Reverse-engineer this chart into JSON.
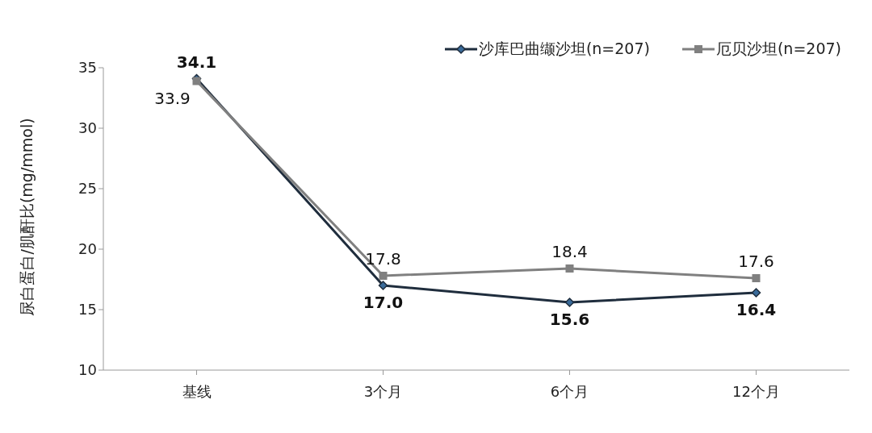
{
  "chart_data": {
    "type": "line",
    "ylabel": "尿白蛋白/肌酐比(mg/mmol)",
    "categories": [
      "基线",
      "3个月",
      "6个月",
      "12个月"
    ],
    "series": [
      {
        "name": "沙库巴曲缬沙坦(n=207)",
        "color": "#1f2d3d",
        "marker": "diamond",
        "values": [
          34.1,
          17.0,
          15.6,
          16.4
        ],
        "value_labels": [
          "34.1",
          "17.0",
          "15.6",
          "16.4"
        ]
      },
      {
        "name": "厄贝沙坦(n=207)",
        "color": "#808080",
        "marker": "square",
        "values": [
          33.9,
          17.8,
          18.4,
          17.6
        ],
        "value_labels": [
          "33.9",
          "17.8",
          "18.4",
          "17.6"
        ]
      }
    ],
    "ylim": [
      10,
      35
    ],
    "yticks": [
      10,
      15,
      20,
      25,
      30,
      35
    ],
    "grid": false,
    "legend": "top right",
    "data_labels": true,
    "line_style": "solid"
  }
}
